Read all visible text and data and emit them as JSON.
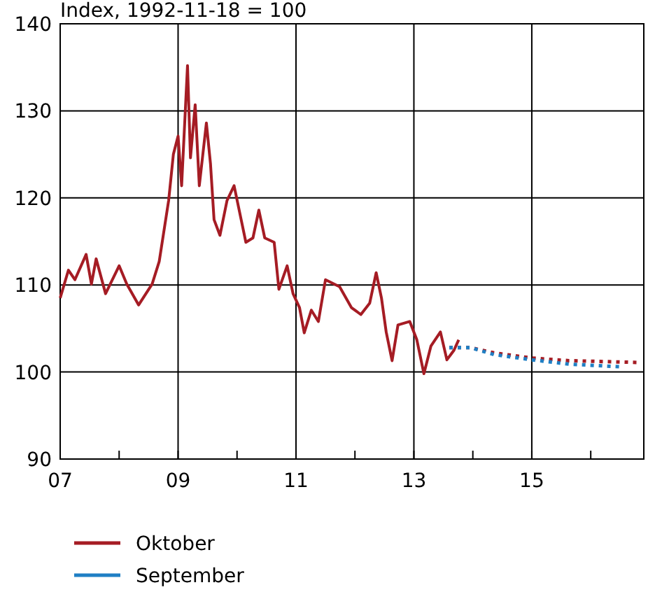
{
  "chart_data": {
    "type": "line",
    "title": "Index, 1992-11-18 = 100",
    "xlim": [
      7,
      16.9
    ],
    "xticks": [
      {
        "value": 7,
        "label": "07"
      },
      {
        "value": 8,
        "label": null
      },
      {
        "value": 9,
        "label": "09"
      },
      {
        "value": 10,
        "label": null
      },
      {
        "value": 11,
        "label": "11"
      },
      {
        "value": 12,
        "label": null
      },
      {
        "value": 13,
        "label": "13"
      },
      {
        "value": 14,
        "label": null
      },
      {
        "value": 15,
        "label": "15"
      },
      {
        "value": 16,
        "label": null
      }
    ],
    "ylim": [
      90,
      140
    ],
    "yticks": [
      90,
      100,
      110,
      120,
      130,
      140
    ],
    "grid": true,
    "legend": "bottom",
    "series": [
      {
        "name": "Oktober",
        "color": "#a51c24",
        "line_style": "solid",
        "x": [
          7.0,
          7.14,
          7.25,
          7.44,
          7.53,
          7.61,
          7.77,
          8.0,
          8.13,
          8.33,
          8.56,
          8.68,
          8.84,
          8.92,
          9.0,
          9.06,
          9.16,
          9.21,
          9.29,
          9.36,
          9.48,
          9.55,
          9.61,
          9.71,
          9.83,
          9.95,
          10.07,
          10.15,
          10.27,
          10.37,
          10.47,
          10.63,
          10.71,
          10.85,
          10.95,
          11.06,
          11.14,
          11.26,
          11.38,
          11.5,
          11.74,
          11.94,
          12.1,
          12.25,
          12.36,
          12.45,
          12.53,
          12.63,
          12.73,
          12.93,
          13.05,
          13.17,
          13.29,
          13.45,
          13.56,
          13.68,
          13.76
        ],
        "values": [
          108.5,
          111.7,
          110.6,
          113.5,
          110.1,
          113,
          109,
          112.2,
          110.1,
          107.7,
          110.1,
          112.7,
          119.7,
          125,
          127.1,
          121.4,
          135.2,
          124.6,
          130.7,
          121.4,
          128.6,
          123.9,
          117.5,
          115.7,
          119.7,
          121.4,
          117.5,
          114.9,
          115.4,
          118.6,
          115.4,
          114.9,
          109.5,
          112.2,
          109,
          107.4,
          104.5,
          107.1,
          105.8,
          110.6,
          109.8,
          107.4,
          106.6,
          107.9,
          111.4,
          108.5,
          104.6,
          101.3,
          105.4,
          105.8,
          103.7,
          99.8,
          103,
          104.6,
          101.4,
          102.5,
          103.7
        ]
      },
      {
        "color": "#a51c24",
        "line_style": "dotted",
        "x": [
          13.6,
          13.96,
          14.36,
          15.0,
          15.63,
          16.78
        ],
        "values": [
          102.8,
          102.8,
          102.2,
          101.6,
          101.3,
          101.1
        ]
      },
      {
        "name": "September",
        "color": "#1f7fc4",
        "line_style": "dotted",
        "x": [
          13.6,
          13.96,
          14.36,
          15.0,
          15.63,
          16.5
        ],
        "values": [
          102.8,
          102.8,
          102.0,
          101.4,
          100.9,
          100.6
        ]
      }
    ]
  }
}
